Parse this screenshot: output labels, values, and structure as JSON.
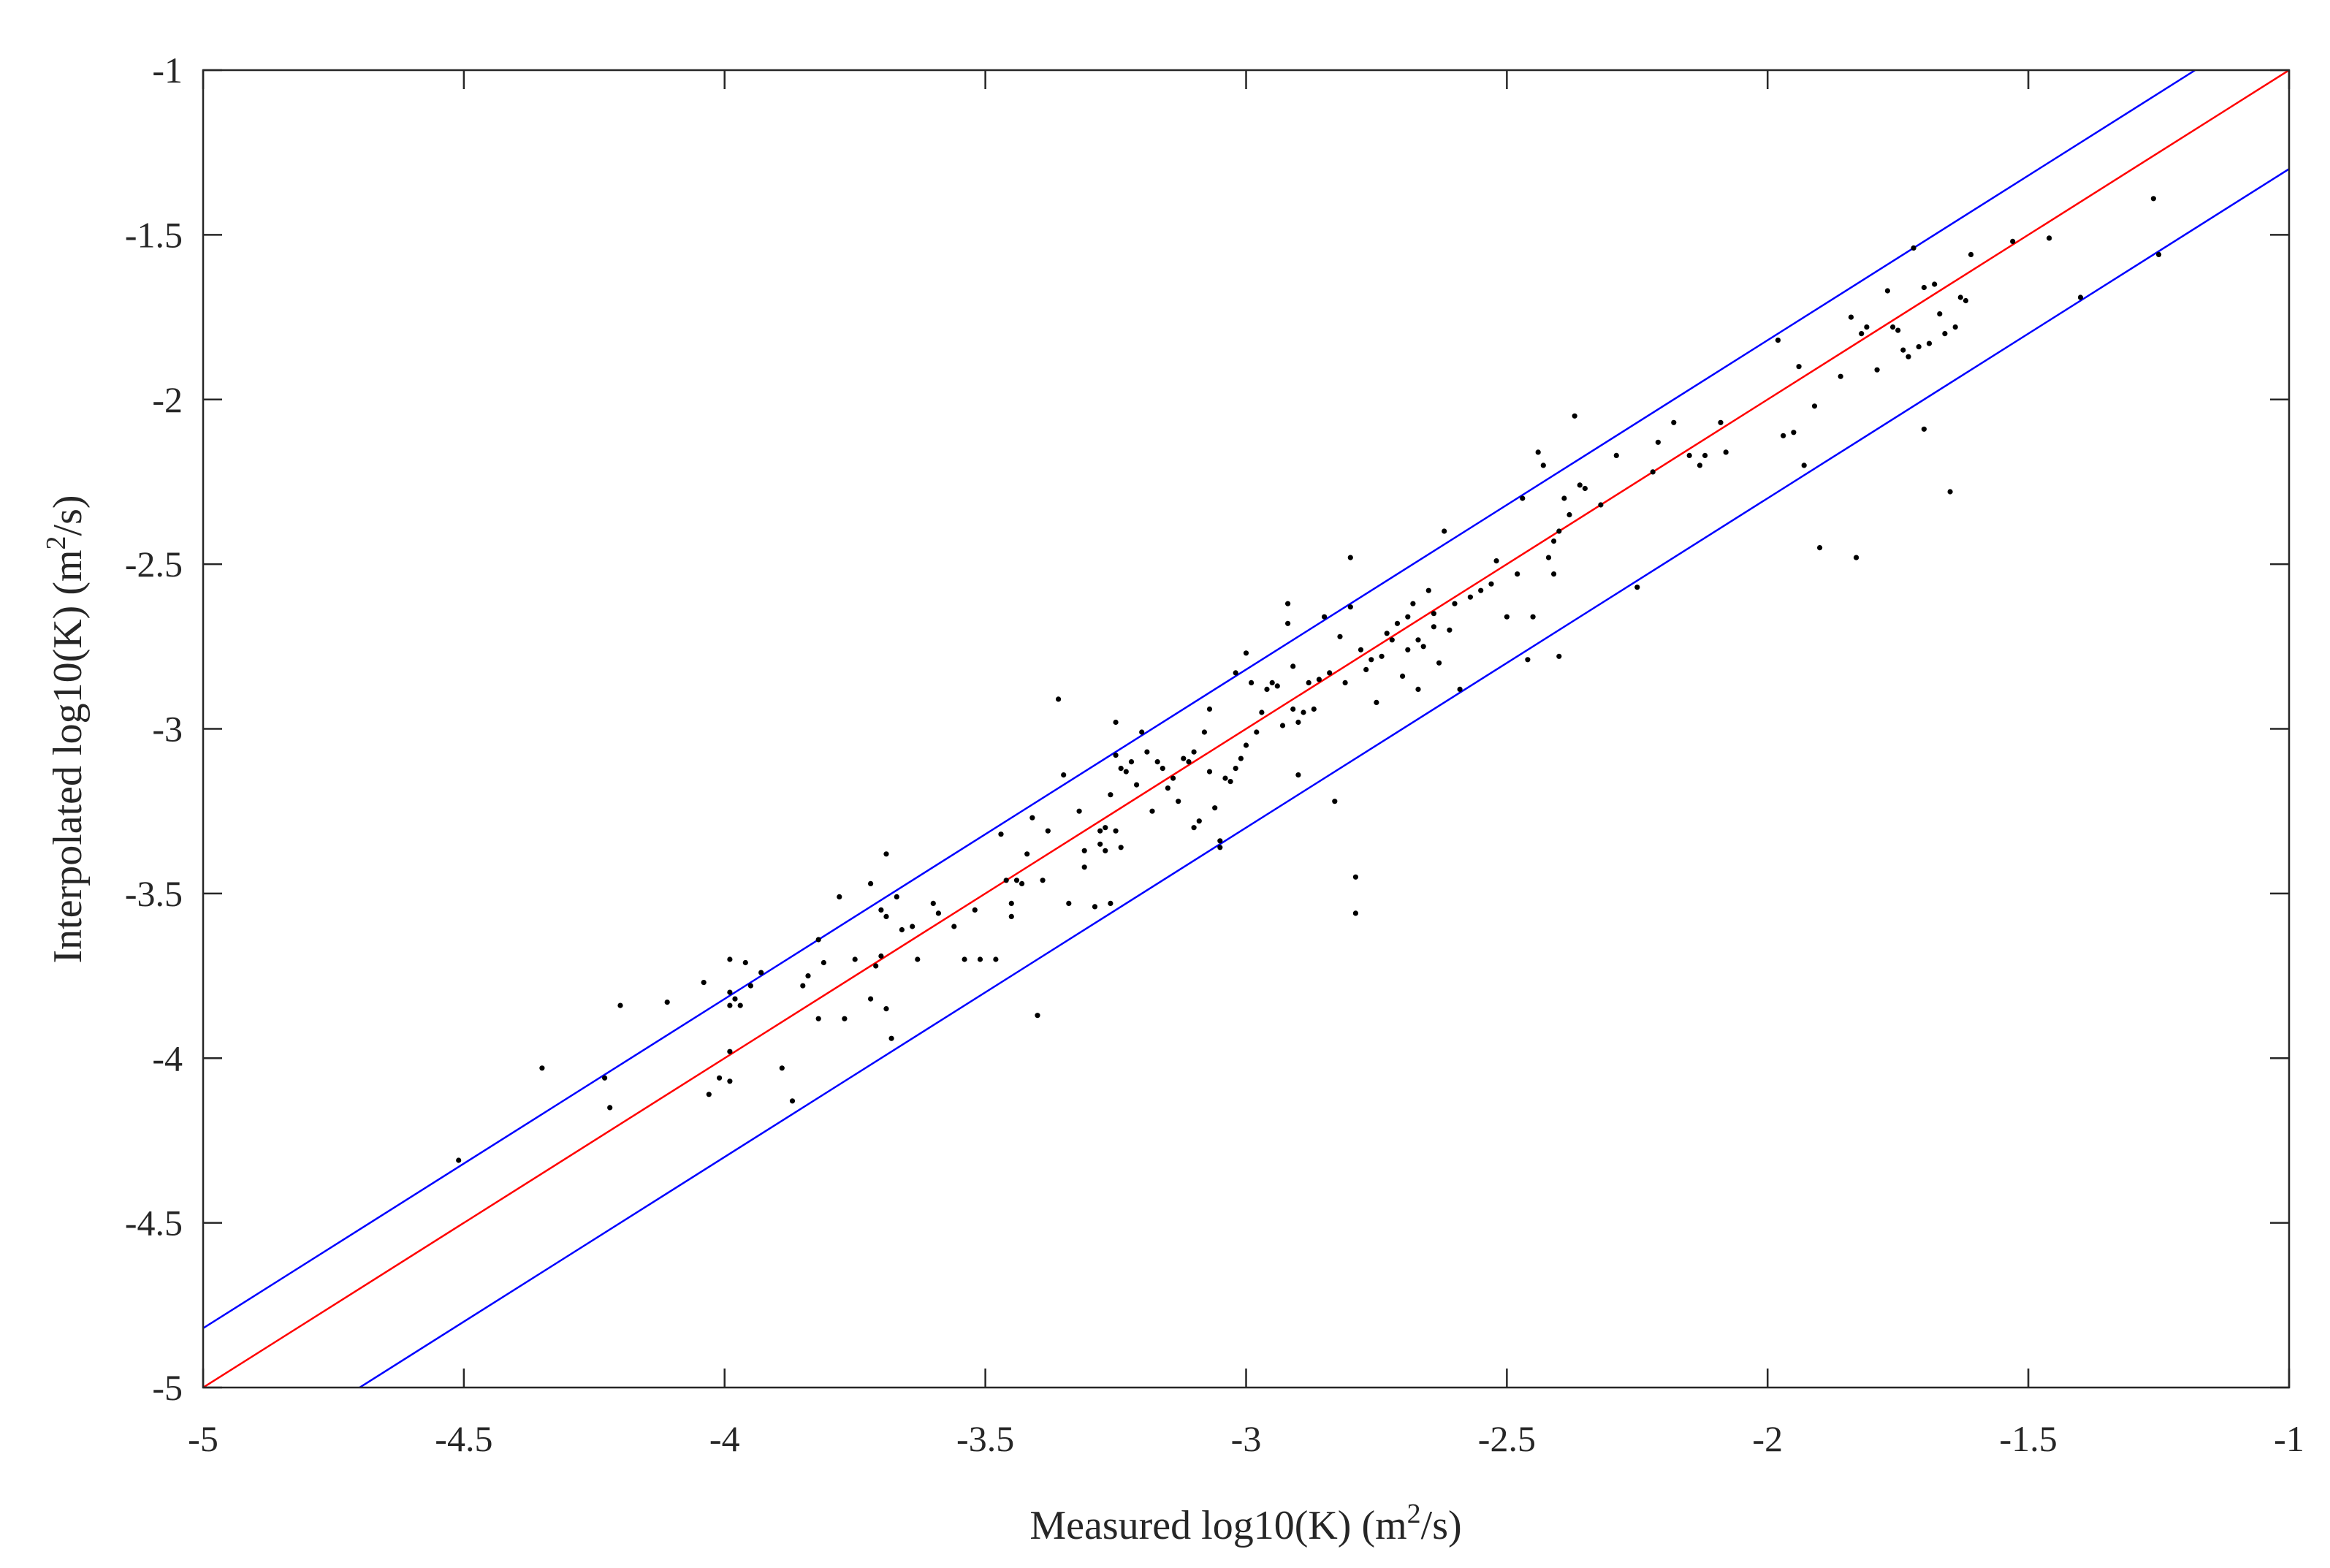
{
  "chart_data": {
    "type": "scatter",
    "xlabel": {
      "main": "Measured log10(K) (m",
      "sup": "2",
      "tail": "/s)"
    },
    "ylabel": {
      "main": "Interpolated log10(K) (m",
      "sup": "2",
      "tail": "/s)"
    },
    "xlim": [
      -5,
      -1
    ],
    "ylim": [
      -5,
      -1
    ],
    "xticks": [
      -5,
      -4.5,
      -4,
      -3.5,
      -3,
      -2.5,
      -2,
      -1.5,
      -1
    ],
    "yticks": [
      -5,
      -4.5,
      -4,
      -3.5,
      -3,
      -2.5,
      -2,
      -1.5,
      -1
    ],
    "xtick_labels": [
      "-5",
      "-4.5",
      "-4",
      "-3.5",
      "-3",
      "-2.5",
      "-2",
      "-1.5",
      "-1"
    ],
    "ytick_labels": [
      "-5",
      "-4.5",
      "-4",
      "-3.5",
      "-3",
      "-2.5",
      "-2",
      "-1.5",
      "-1"
    ],
    "grid": false,
    "lines": [
      {
        "role": "1:1 line",
        "color": "#ff0000",
        "x": [
          -5,
          -1
        ],
        "y": [
          -5,
          -1
        ]
      },
      {
        "role": "upper bound",
        "color": "#0000ff",
        "x": [
          -5,
          -1.18
        ],
        "y": [
          -4.82,
          -1
        ]
      },
      {
        "role": "lower bound",
        "color": "#0000ff",
        "x": [
          -4.7,
          -1
        ],
        "y": [
          -5,
          -1.3
        ]
      }
    ],
    "points": [
      [
        -4.51,
        -4.31
      ],
      [
        -4.35,
        -4.03
      ],
      [
        -4.23,
        -4.06
      ],
      [
        -4.22,
        -4.15
      ],
      [
        -4.2,
        -3.84
      ],
      [
        -4.11,
        -3.83
      ],
      [
        -4.04,
        -3.77
      ],
      [
        -4.03,
        -4.11
      ],
      [
        -4.01,
        -4.06
      ],
      [
        -3.99,
        -3.7
      ],
      [
        -3.99,
        -3.8
      ],
      [
        -3.99,
        -3.84
      ],
      [
        -3.99,
        -3.98
      ],
      [
        -3.99,
        -4.07
      ],
      [
        -3.98,
        -3.82
      ],
      [
        -3.97,
        -3.84
      ],
      [
        -3.96,
        -3.71
      ],
      [
        -3.95,
        -3.78
      ],
      [
        -3.93,
        -3.74
      ],
      [
        -3.89,
        -4.03
      ],
      [
        -3.87,
        -4.13
      ],
      [
        -3.85,
        -3.78
      ],
      [
        -3.84,
        -3.75
      ],
      [
        -3.82,
        -3.64
      ],
      [
        -3.82,
        -3.88
      ],
      [
        -3.81,
        -3.71
      ],
      [
        -3.78,
        -3.51
      ],
      [
        -3.77,
        -3.88
      ],
      [
        -3.75,
        -3.7
      ],
      [
        -3.72,
        -3.47
      ],
      [
        -3.72,
        -3.82
      ],
      [
        -3.71,
        -3.72
      ],
      [
        -3.7,
        -3.55
      ],
      [
        -3.7,
        -3.69
      ],
      [
        -3.69,
        -3.38
      ],
      [
        -3.69,
        -3.57
      ],
      [
        -3.69,
        -3.85
      ],
      [
        -3.68,
        -3.94
      ],
      [
        -3.67,
        -3.51
      ],
      [
        -3.66,
        -3.61
      ],
      [
        -3.64,
        -3.6
      ],
      [
        -3.63,
        -3.7
      ],
      [
        -3.6,
        -3.53
      ],
      [
        -3.59,
        -3.56
      ],
      [
        -3.56,
        -3.6
      ],
      [
        -3.54,
        -3.7
      ],
      [
        -3.52,
        -3.55
      ],
      [
        -3.51,
        -3.7
      ],
      [
        -3.48,
        -3.7
      ],
      [
        -3.47,
        -3.32
      ],
      [
        -3.46,
        -3.46
      ],
      [
        -3.45,
        -3.53
      ],
      [
        -3.45,
        -3.57
      ],
      [
        -3.44,
        -3.46
      ],
      [
        -3.43,
        -3.47
      ],
      [
        -3.42,
        -3.38
      ],
      [
        -3.41,
        -3.27
      ],
      [
        -3.4,
        -3.87
      ],
      [
        -3.39,
        -3.46
      ],
      [
        -3.38,
        -3.31
      ],
      [
        -3.36,
        -2.91
      ],
      [
        -3.35,
        -3.14
      ],
      [
        -3.34,
        -3.53
      ],
      [
        -3.32,
        -3.25
      ],
      [
        -3.31,
        -3.37
      ],
      [
        -3.31,
        -3.42
      ],
      [
        -3.29,
        -3.54
      ],
      [
        -3.28,
        -3.31
      ],
      [
        -3.28,
        -3.35
      ],
      [
        -3.27,
        -3.3
      ],
      [
        -3.27,
        -3.37
      ],
      [
        -3.26,
        -3.2
      ],
      [
        -3.26,
        -3.53
      ],
      [
        -3.25,
        -2.98
      ],
      [
        -3.25,
        -3.08
      ],
      [
        -3.25,
        -3.31
      ],
      [
        -3.24,
        -3.12
      ],
      [
        -3.24,
        -3.36
      ],
      [
        -3.23,
        -3.13
      ],
      [
        -3.22,
        -3.1
      ],
      [
        -3.21,
        -3.17
      ],
      [
        -3.2,
        -3.01
      ],
      [
        -3.19,
        -3.07
      ],
      [
        -3.18,
        -3.25
      ],
      [
        -3.17,
        -3.1
      ],
      [
        -3.16,
        -3.12
      ],
      [
        -3.15,
        -3.18
      ],
      [
        -3.14,
        -3.15
      ],
      [
        -3.13,
        -3.22
      ],
      [
        -3.12,
        -3.09
      ],
      [
        -3.11,
        -3.1
      ],
      [
        -3.1,
        -3.07
      ],
      [
        -3.1,
        -3.3
      ],
      [
        -3.09,
        -3.28
      ],
      [
        -3.08,
        -3.01
      ],
      [
        -3.07,
        -3.13
      ],
      [
        -3.07,
        -2.94
      ],
      [
        -3.06,
        -3.24
      ],
      [
        -3.05,
        -3.34
      ],
      [
        -3.05,
        -3.36
      ],
      [
        -3.04,
        -3.15
      ],
      [
        -3.03,
        -3.16
      ],
      [
        -3.02,
        -3.12
      ],
      [
        -3.02,
        -2.83
      ],
      [
        -3.01,
        -3.09
      ],
      [
        -3.0,
        -2.77
      ],
      [
        -3.0,
        -3.05
      ],
      [
        -2.99,
        -2.86
      ],
      [
        -2.98,
        -3.01
      ],
      [
        -2.97,
        -2.95
      ],
      [
        -2.96,
        -2.88
      ],
      [
        -2.95,
        -2.86
      ],
      [
        -2.94,
        -2.87
      ],
      [
        -2.93,
        -2.99
      ],
      [
        -2.92,
        -2.62
      ],
      [
        -2.92,
        -2.68
      ],
      [
        -2.91,
        -2.81
      ],
      [
        -2.91,
        -2.94
      ],
      [
        -2.9,
        -2.98
      ],
      [
        -2.9,
        -3.14
      ],
      [
        -2.89,
        -2.95
      ],
      [
        -2.88,
        -2.86
      ],
      [
        -2.87,
        -2.94
      ],
      [
        -2.86,
        -2.85
      ],
      [
        -2.85,
        -2.66
      ],
      [
        -2.84,
        -2.83
      ],
      [
        -2.83,
        -3.22
      ],
      [
        -2.82,
        -2.72
      ],
      [
        -2.81,
        -2.86
      ],
      [
        -2.8,
        -2.48
      ],
      [
        -2.8,
        -2.63
      ],
      [
        -2.79,
        -3.45
      ],
      [
        -2.79,
        -3.56
      ],
      [
        -2.78,
        -2.76
      ],
      [
        -2.77,
        -2.82
      ],
      [
        -2.76,
        -2.79
      ],
      [
        -2.75,
        -2.92
      ],
      [
        -2.74,
        -2.78
      ],
      [
        -2.73,
        -2.71
      ],
      [
        -2.72,
        -2.73
      ],
      [
        -2.71,
        -2.68
      ],
      [
        -2.7,
        -2.84
      ],
      [
        -2.69,
        -2.66
      ],
      [
        -2.69,
        -2.76
      ],
      [
        -2.68,
        -2.62
      ],
      [
        -2.67,
        -2.73
      ],
      [
        -2.67,
        -2.88
      ],
      [
        -2.66,
        -2.75
      ],
      [
        -2.65,
        -2.58
      ],
      [
        -2.64,
        -2.65
      ],
      [
        -2.64,
        -2.69
      ],
      [
        -2.63,
        -2.8
      ],
      [
        -2.62,
        -2.4
      ],
      [
        -2.61,
        -2.7
      ],
      [
        -2.6,
        -2.62
      ],
      [
        -2.59,
        -2.88
      ],
      [
        -2.57,
        -2.6
      ],
      [
        -2.55,
        -2.58
      ],
      [
        -2.53,
        -2.56
      ],
      [
        -2.52,
        -2.49
      ],
      [
        -2.5,
        -2.66
      ],
      [
        -2.48,
        -2.53
      ],
      [
        -2.47,
        -2.3
      ],
      [
        -2.46,
        -2.79
      ],
      [
        -2.45,
        -2.66
      ],
      [
        -2.44,
        -2.16
      ],
      [
        -2.43,
        -2.2
      ],
      [
        -2.42,
        -2.48
      ],
      [
        -2.41,
        -2.43
      ],
      [
        -2.41,
        -2.53
      ],
      [
        -2.4,
        -2.4
      ],
      [
        -2.4,
        -2.78
      ],
      [
        -2.39,
        -2.3
      ],
      [
        -2.38,
        -2.35
      ],
      [
        -2.37,
        -2.05
      ],
      [
        -2.36,
        -2.26
      ],
      [
        -2.35,
        -2.27
      ],
      [
        -2.32,
        -2.32
      ],
      [
        -2.29,
        -2.17
      ],
      [
        -2.25,
        -2.57
      ],
      [
        -2.22,
        -2.22
      ],
      [
        -2.21,
        -2.13
      ],
      [
        -2.18,
        -2.07
      ],
      [
        -2.15,
        -2.17
      ],
      [
        -2.13,
        -2.2
      ],
      [
        -2.12,
        -2.17
      ],
      [
        -2.09,
        -2.07
      ],
      [
        -2.08,
        -2.16
      ],
      [
        -1.98,
        -1.82
      ],
      [
        -1.97,
        -2.11
      ],
      [
        -1.95,
        -2.1
      ],
      [
        -1.94,
        -1.9
      ],
      [
        -1.93,
        -2.2
      ],
      [
        -1.91,
        -2.02
      ],
      [
        -1.9,
        -2.45
      ],
      [
        -1.86,
        -1.93
      ],
      [
        -1.84,
        -1.75
      ],
      [
        -1.83,
        -2.48
      ],
      [
        -1.82,
        -1.8
      ],
      [
        -1.81,
        -1.78
      ],
      [
        -1.79,
        -1.91
      ],
      [
        -1.77,
        -1.67
      ],
      [
        -1.76,
        -1.78
      ],
      [
        -1.75,
        -1.79
      ],
      [
        -1.74,
        -1.85
      ],
      [
        -1.73,
        -1.87
      ],
      [
        -1.72,
        -1.54
      ],
      [
        -1.71,
        -1.84
      ],
      [
        -1.7,
        -1.66
      ],
      [
        -1.7,
        -2.09
      ],
      [
        -1.69,
        -1.83
      ],
      [
        -1.68,
        -1.65
      ],
      [
        -1.67,
        -1.74
      ],
      [
        -1.66,
        -1.8
      ],
      [
        -1.65,
        -2.28
      ],
      [
        -1.64,
        -1.78
      ],
      [
        -1.63,
        -1.69
      ],
      [
        -1.62,
        -1.7
      ],
      [
        -1.61,
        -1.56
      ],
      [
        -1.53,
        -1.52
      ],
      [
        -1.46,
        -1.51
      ],
      [
        -1.4,
        -1.69
      ],
      [
        -1.26,
        -1.39
      ],
      [
        -1.25,
        -1.56
      ]
    ]
  }
}
